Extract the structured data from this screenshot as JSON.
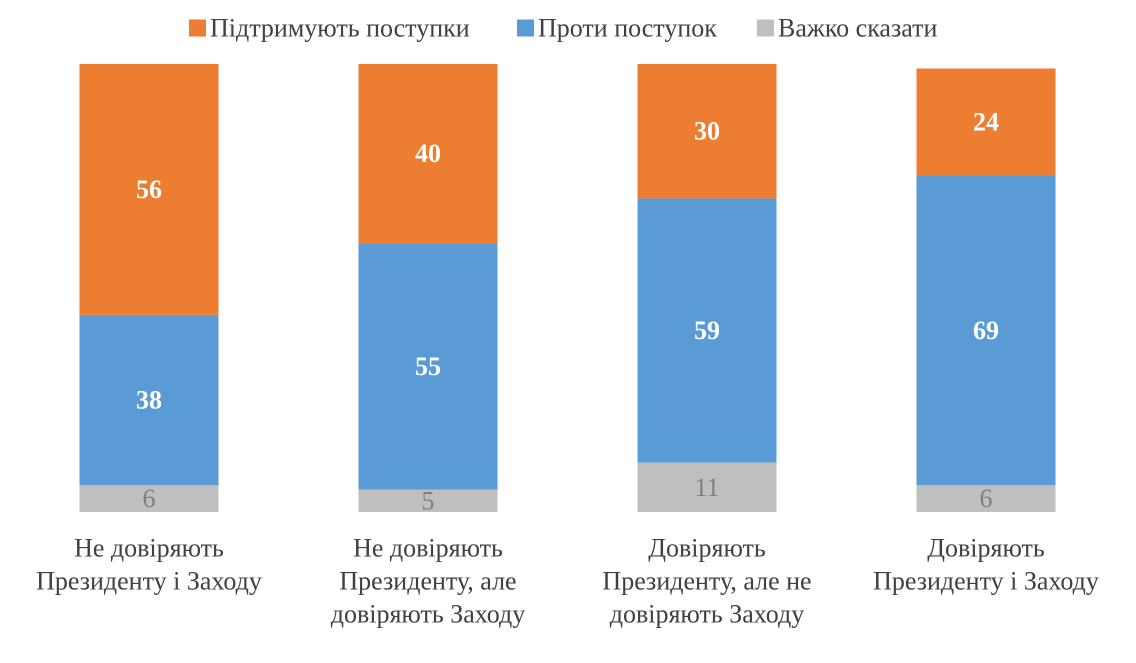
{
  "chart_data": {
    "type": "bar",
    "stacked": true,
    "percent": true,
    "categories": [
      [
        "Не довіряють",
        "Президенту і Заходу"
      ],
      [
        "Не довіряють",
        "Президенту, але",
        "довіряють Заходу"
      ],
      [
        "Довіряють",
        "Президенту, але не",
        "довіряють Заходу"
      ],
      [
        "Довіряють",
        "Президенту і Заходу"
      ]
    ],
    "series": [
      {
        "name": "Важко сказати",
        "color": "#bfbfbf",
        "values": [
          6,
          5,
          11,
          6
        ]
      },
      {
        "name": "Проти поступок",
        "color": "#5b9bd5",
        "values": [
          38,
          55,
          59,
          69
        ]
      },
      {
        "name": "Підтримують поступки",
        "color": "#ed7d31",
        "values": [
          56,
          40,
          30,
          24
        ]
      }
    ],
    "legend_order": [
      "Підтримують поступки",
      "Проти поступок",
      "Важко сказати"
    ],
    "legend_position": "top",
    "ylim": [
      0,
      100
    ],
    "grid": false
  }
}
